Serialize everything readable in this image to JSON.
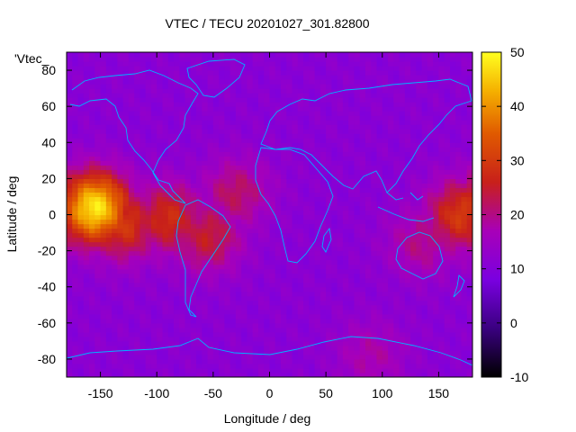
{
  "chart_data": {
    "type": "heatmap",
    "title": "VTEC / TECU 20201027_301.82800",
    "xlabel": "Longitude / deg",
    "ylabel": "Latitude / deg",
    "key_label": "'Vtec_",
    "xlim": [
      -180,
      180
    ],
    "ylim": [
      -90,
      90
    ],
    "x_ticks": [
      -150,
      -100,
      -50,
      0,
      50,
      100,
      150
    ],
    "y_ticks": [
      -80,
      -60,
      -40,
      -20,
      0,
      20,
      40,
      60,
      80
    ],
    "colorbar": {
      "min": -10,
      "max": 50,
      "ticks": [
        -10,
        0,
        10,
        20,
        30,
        40,
        50
      ]
    },
    "grid_resolution_deg": [
      5,
      2.5
    ],
    "background_value": 11,
    "hotspots": [
      {
        "lon": -155,
        "lat": 4,
        "value": 48
      },
      {
        "lon": -130,
        "lat": -5,
        "value": 30
      },
      {
        "lon": -90,
        "lat": -2,
        "value": 28
      },
      {
        "lon": -55,
        "lat": -12,
        "value": 25
      },
      {
        "lon": -30,
        "lat": 12,
        "value": 22
      },
      {
        "lon": 170,
        "lat": 0,
        "value": 30
      },
      {
        "lon": 135,
        "lat": -15,
        "value": 20
      },
      {
        "lon": 90,
        "lat": -78,
        "value": 18
      }
    ]
  }
}
